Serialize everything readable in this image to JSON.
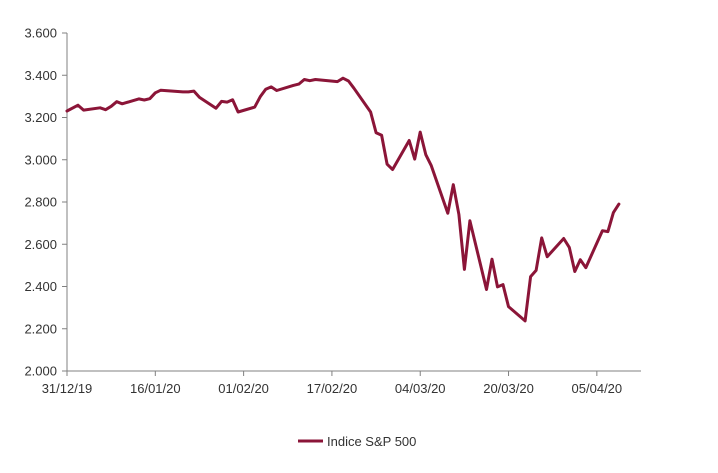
{
  "chart_data": {
    "type": "line",
    "title": "",
    "xlabel": "",
    "ylabel": "",
    "ylim": [
      2000,
      3600
    ],
    "y_ticks": [
      2000,
      2200,
      2400,
      2600,
      2800,
      3000,
      3200,
      3400,
      3600
    ],
    "y_tick_labels": [
      "2.000",
      "2.200",
      "2.400",
      "2.600",
      "2.800",
      "3.000",
      "3.200",
      "3.400",
      "3.600"
    ],
    "x_ticks": [
      "2019-12-31",
      "2020-01-16",
      "2020-02-01",
      "2020-02-17",
      "2020-03-04",
      "2020-03-20",
      "2020-04-05"
    ],
    "x_tick_labels": [
      "31/12/19",
      "16/01/20",
      "01/02/20",
      "17/02/20",
      "04/03/20",
      "20/03/20",
      "05/04/20"
    ],
    "xlim": [
      "2019-12-31",
      "2020-04-13"
    ],
    "grid": false,
    "legend_position": "bottom",
    "series": [
      {
        "name": "Indice S&P 500",
        "color": "#8b1538",
        "x": [
          "2019-12-31",
          "2020-01-02",
          "2020-01-03",
          "2020-01-06",
          "2020-01-07",
          "2020-01-08",
          "2020-01-09",
          "2020-01-10",
          "2020-01-13",
          "2020-01-14",
          "2020-01-15",
          "2020-01-16",
          "2020-01-17",
          "2020-01-21",
          "2020-01-22",
          "2020-01-23",
          "2020-01-24",
          "2020-01-27",
          "2020-01-28",
          "2020-01-29",
          "2020-01-30",
          "2020-01-31",
          "2020-02-03",
          "2020-02-04",
          "2020-02-05",
          "2020-02-06",
          "2020-02-07",
          "2020-02-10",
          "2020-02-11",
          "2020-02-12",
          "2020-02-13",
          "2020-02-14",
          "2020-02-18",
          "2020-02-19",
          "2020-02-20",
          "2020-02-21",
          "2020-02-24",
          "2020-02-25",
          "2020-02-26",
          "2020-02-27",
          "2020-02-28",
          "2020-03-02",
          "2020-03-03",
          "2020-03-04",
          "2020-03-05",
          "2020-03-06",
          "2020-03-09",
          "2020-03-10",
          "2020-03-11",
          "2020-03-12",
          "2020-03-13",
          "2020-03-16",
          "2020-03-17",
          "2020-03-18",
          "2020-03-19",
          "2020-03-20",
          "2020-03-23",
          "2020-03-24",
          "2020-03-25",
          "2020-03-26",
          "2020-03-27",
          "2020-03-30",
          "2020-03-31",
          "2020-04-01",
          "2020-04-02",
          "2020-04-03",
          "2020-04-06",
          "2020-04-07",
          "2020-04-08",
          "2020-04-09"
        ],
        "y": [
          3231,
          3258,
          3235,
          3246,
          3237,
          3253,
          3275,
          3265,
          3288,
          3283,
          3289,
          3317,
          3329,
          3321,
          3321,
          3325,
          3295,
          3244,
          3276,
          3273,
          3284,
          3226,
          3249,
          3298,
          3334,
          3345,
          3328,
          3352,
          3358,
          3380,
          3374,
          3380,
          3370,
          3386,
          3373,
          3338,
          3226,
          3128,
          3116,
          2979,
          2954,
          3091,
          3003,
          3131,
          3024,
          2972,
          2747,
          2882,
          2741,
          2481,
          2711,
          2386,
          2529,
          2398,
          2409,
          2305,
          2237,
          2447,
          2476,
          2630,
          2541,
          2627,
          2585,
          2471,
          2527,
          2489,
          2664,
          2660,
          2750,
          2790
        ]
      }
    ]
  }
}
